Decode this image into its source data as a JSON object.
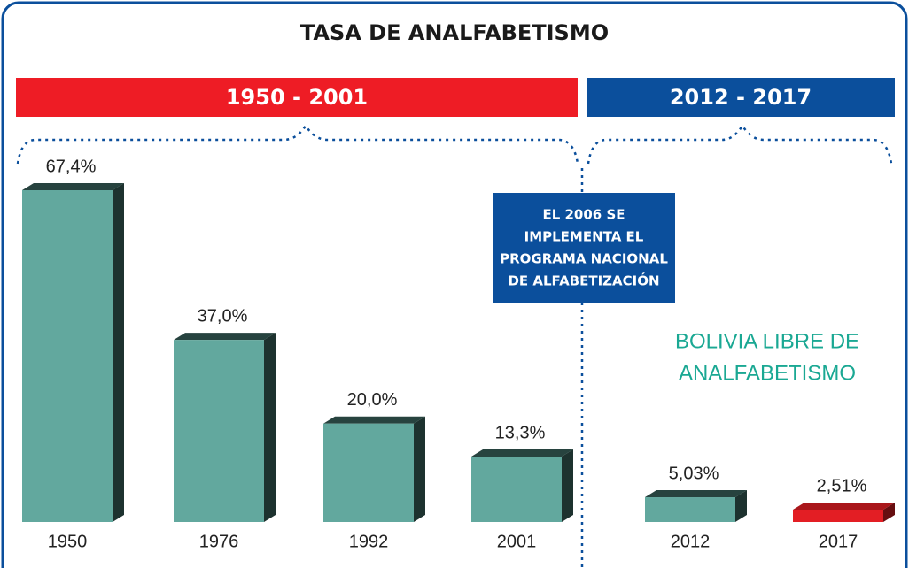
{
  "chart_data": {
    "type": "bar3d",
    "title": "TASA DE ANALFABETISMO",
    "periods": [
      "1950 - 2001",
      "2012 - 2017"
    ],
    "period_colors": [
      "#ee1c25",
      "#0b4f9c"
    ],
    "note": [
      "EL 2006 SE",
      "IMPLEMENTA EL",
      "PROGRAMA NACIONAL",
      "DE ALFABETIZACIÓN"
    ],
    "annotation": [
      "BOLIVIA LIBRE DE",
      "ANALFABETISMO"
    ],
    "categories": [
      "1950",
      "1976",
      "1992",
      "2001",
      "2012",
      "2017"
    ],
    "values": [
      67.4,
      37.0,
      20.0,
      13.3,
      5.03,
      2.51
    ],
    "value_labels": [
      "67,4%",
      "37,0%",
      "20,0%",
      "13,3%",
      "5,03%",
      "2,51%"
    ],
    "colors": [
      "#62a89e",
      "#62a89e",
      "#62a89e",
      "#62a89e",
      "#62a89e",
      "#e31e24"
    ]
  }
}
